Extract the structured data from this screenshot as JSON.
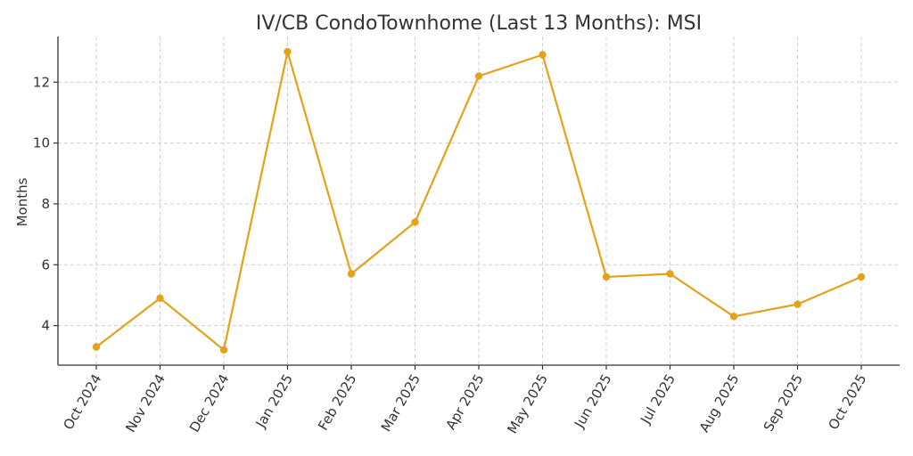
{
  "chart_data": {
    "type": "line",
    "title": "IV/CB CondoTownhome (Last 13 Months): MSI",
    "xlabel": "",
    "ylabel": "Months",
    "categories": [
      "Oct 2024",
      "Nov 2024",
      "Dec 2024",
      "Jan 2025",
      "Feb 2025",
      "Mar 2025",
      "Apr 2025",
      "May 2025",
      "Jun 2025",
      "Jul 2025",
      "Aug 2025",
      "Sep 2025",
      "Oct 2025"
    ],
    "series": [
      {
        "values": [
          3.3,
          4.9,
          3.2,
          13.0,
          5.7,
          7.4,
          12.2,
          12.9,
          5.6,
          5.7,
          4.3,
          4.7,
          5.6
        ],
        "color": "#E3A21A"
      }
    ],
    "ylim": [
      2.7,
      13.5
    ],
    "yticks": [
      4,
      6,
      8,
      10,
      12
    ],
    "grid": true,
    "legend": "none"
  }
}
